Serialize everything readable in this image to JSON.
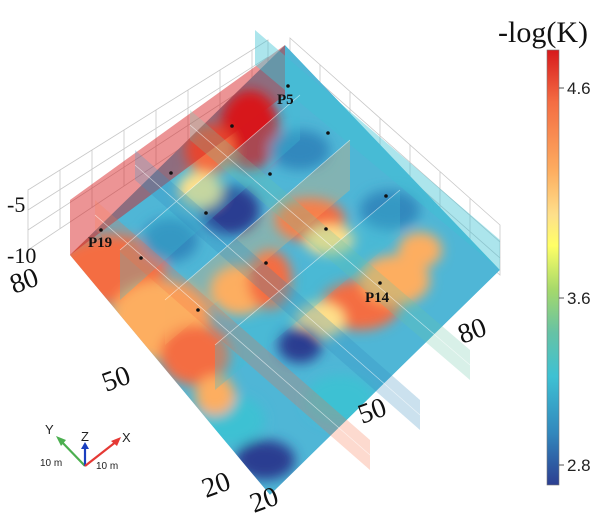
{
  "figure": {
    "colorbar": {
      "title": "-log(K)",
      "ticks": [
        "4.6",
        "3.6",
        "2.8"
      ],
      "colors": [
        "#d7191c",
        "#f46d43",
        "#fdae61",
        "#fee08b",
        "#ffff66",
        "#a6d96a",
        "#66c2a5",
        "#3ec1d3",
        "#3288bd",
        "#2c3e91"
      ]
    },
    "axes": {
      "z_ticks": [
        "-5",
        "-10"
      ],
      "y_ticks": [
        "80",
        "50",
        "20"
      ],
      "x_ticks": [
        "20",
        "50",
        "80"
      ]
    },
    "wells": [
      "P5",
      "P19",
      "P14"
    ],
    "orientation": {
      "y_label": "Y",
      "z_label": "Z",
      "x_label": "X",
      "y_scale": "10 m",
      "x_scale": "10 m",
      "colors": {
        "y": "#4caf50",
        "z": "#1a3fbf",
        "x": "#e53935"
      }
    }
  }
}
